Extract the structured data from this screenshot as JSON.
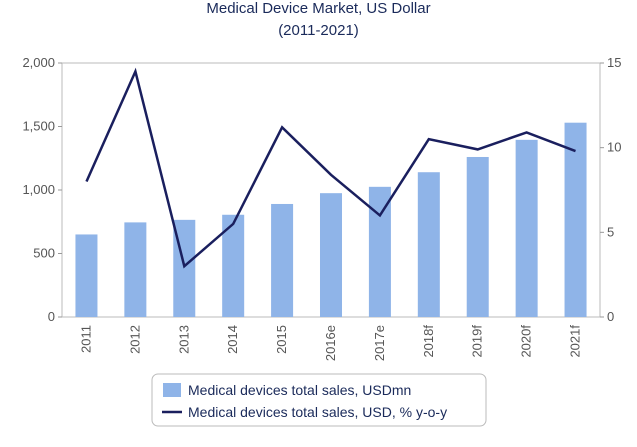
{
  "chart_data": {
    "type": "bar",
    "title": "Medical Device Market, US Dollar",
    "subtitle": "(2011-2021)",
    "categories": [
      "2011",
      "2012",
      "2013",
      "2014",
      "2015",
      "2016e",
      "2017e",
      "2018f",
      "2019f",
      "2020f",
      "2021f"
    ],
    "series": [
      {
        "name": "Medical devices total sales, USDmn",
        "type": "bar",
        "axis": "left",
        "color": "#8fb4e8",
        "values": [
          650,
          745,
          765,
          805,
          890,
          975,
          1025,
          1140,
          1260,
          1395,
          1530
        ]
      },
      {
        "name": "Medical devices total sales, USD, % y-o-y",
        "type": "line",
        "axis": "right",
        "color": "#1a1f5e",
        "values": [
          8.0,
          14.5,
          3.0,
          5.5,
          11.2,
          8.4,
          6.0,
          10.5,
          9.9,
          10.9,
          9.8
        ]
      }
    ],
    "y_left": {
      "min": 0,
      "max": 2000,
      "ticks": [
        0,
        500,
        1000,
        1500,
        2000
      ],
      "tick_labels": [
        "0",
        "500",
        "1,000",
        "1,500",
        "2,000"
      ]
    },
    "y_right": {
      "min": 0,
      "max": 15,
      "ticks": [
        0,
        5,
        10,
        15
      ],
      "tick_labels": [
        "0",
        "5",
        "10",
        "15"
      ]
    },
    "grid": false,
    "legend_position": "bottom"
  }
}
